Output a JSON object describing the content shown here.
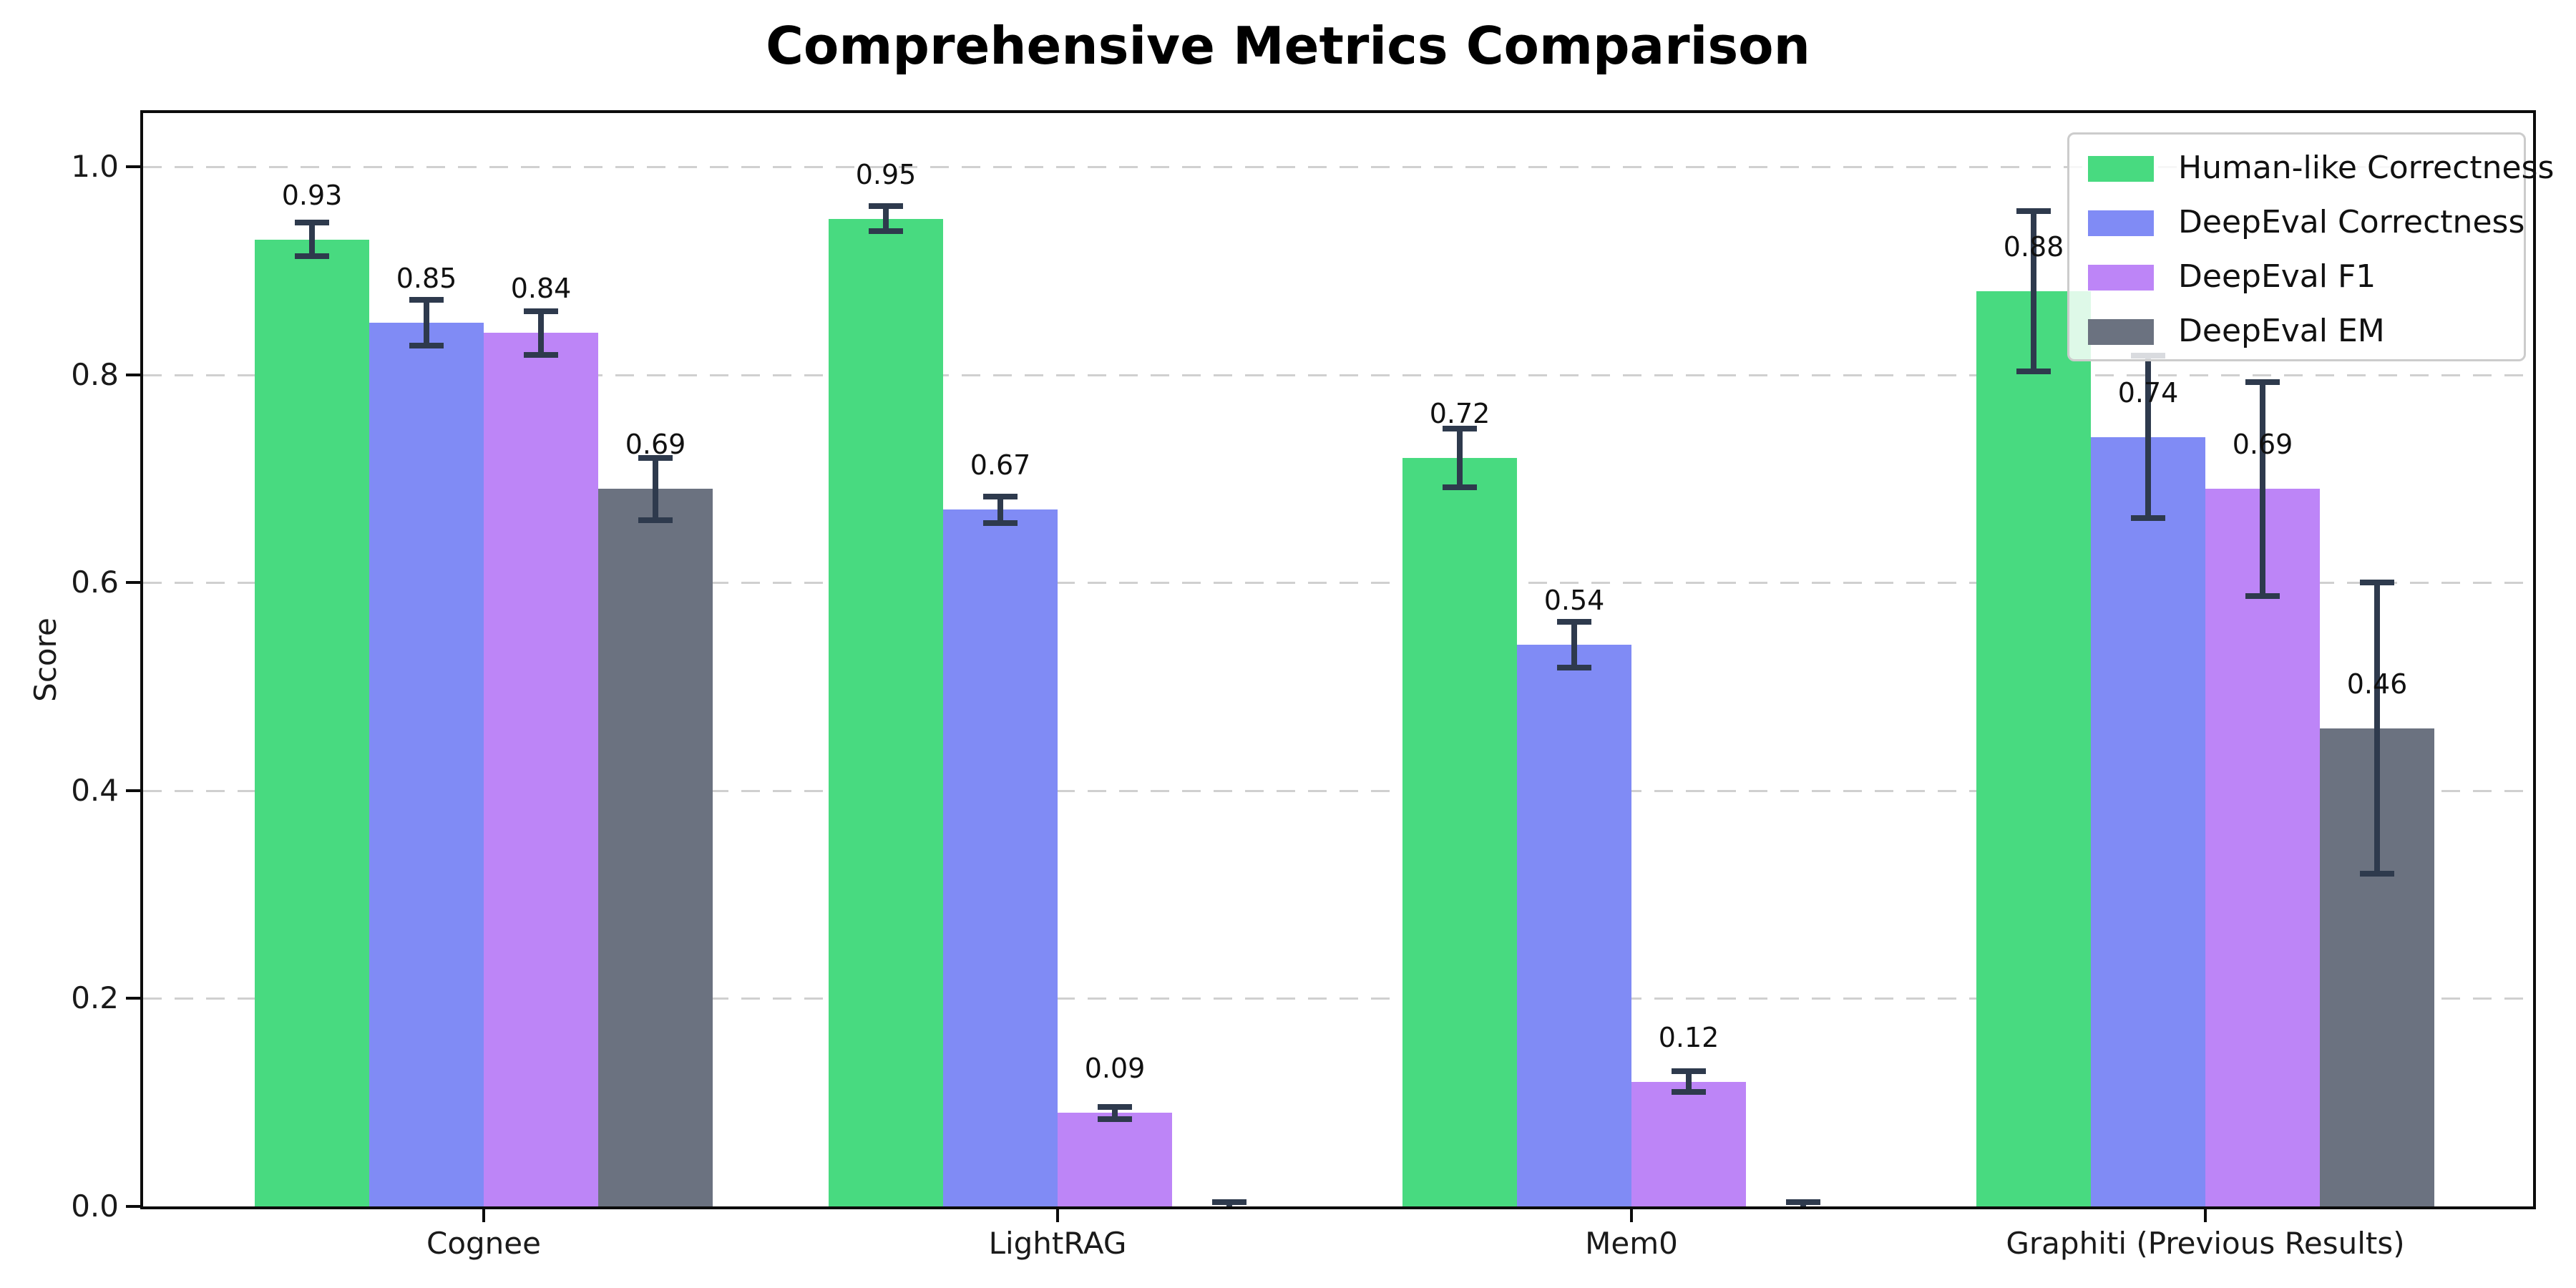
{
  "chart_data": {
    "type": "bar",
    "title": "Comprehensive Metrics Comparison",
    "xlabel": "",
    "ylabel": "Score",
    "categories": [
      "Cognee",
      "LightRAG",
      "Mem0",
      "Graphiti (Previous Results)"
    ],
    "y_ticks": [
      "0.0",
      "0.2",
      "0.4",
      "0.6",
      "0.8",
      "1.0"
    ],
    "ylim": [
      0,
      1.05
    ],
    "grid": "horizontal-dashed",
    "legend_position": "upper-right",
    "series": [
      {
        "name": "Human-like Correctness",
        "color": "#48da80",
        "values": [
          0.93,
          0.95,
          0.72,
          0.88
        ],
        "errors": [
          0.016,
          0.012,
          0.028,
          0.077
        ],
        "labels": [
          "0.93",
          "0.95",
          "0.72",
          "0.88"
        ]
      },
      {
        "name": "DeepEval Correctness",
        "color": "#808bf5",
        "values": [
          0.85,
          0.67,
          0.54,
          0.74
        ],
        "errors": [
          0.022,
          0.013,
          0.022,
          0.078
        ],
        "labels": [
          "0.85",
          "0.67",
          "0.54",
          "0.74"
        ]
      },
      {
        "name": "DeepEval F1",
        "color": "#bd85f7",
        "values": [
          0.84,
          0.09,
          0.12,
          0.69
        ],
        "errors": [
          0.021,
          0.006,
          0.01,
          0.103
        ],
        "labels": [
          "0.84",
          "0.09",
          "0.12",
          "0.69"
        ]
      },
      {
        "name": "DeepEval EM",
        "color": "#6b7280",
        "values": [
          0.69,
          0.0,
          0.0,
          0.46
        ],
        "errors": [
          0.03,
          0.004,
          0.004,
          0.14
        ],
        "labels": [
          "0.69",
          "",
          "",
          "0.46"
        ]
      }
    ],
    "style": {
      "error_bar": "#2e3a4d",
      "grid": "#d0d0d0",
      "axis": "#0c0c0c",
      "background": "#ffffff",
      "text": "#1a1a1a"
    }
  }
}
